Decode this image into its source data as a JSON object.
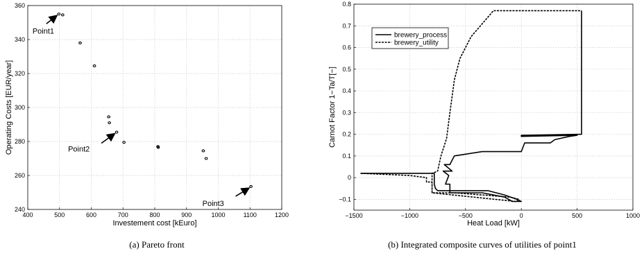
{
  "chart_data": [
    {
      "type": "scatter",
      "title": "",
      "xlabel": "Investement cost [kEuro]",
      "ylabel": "Operating Costs [EUR/year]",
      "xlim": [
        400,
        1200
      ],
      "ylim": [
        240,
        360
      ],
      "xticks": [
        "400",
        "500",
        "600",
        "700",
        "800",
        "900",
        "1000",
        "1100",
        "1200"
      ],
      "yticks": [
        "240",
        "260",
        "280",
        "300",
        "320",
        "340",
        "360"
      ],
      "grid": true,
      "points": [
        {
          "x": 498,
          "y": 355
        },
        {
          "x": 510,
          "y": 354.5
        },
        {
          "x": 565,
          "y": 338
        },
        {
          "x": 610,
          "y": 324.5
        },
        {
          "x": 655,
          "y": 294.5
        },
        {
          "x": 657,
          "y": 291
        },
        {
          "x": 680,
          "y": 285.5
        },
        {
          "x": 703,
          "y": 279.5
        },
        {
          "x": 810,
          "y": 277
        },
        {
          "x": 811,
          "y": 276.5
        },
        {
          "x": 953,
          "y": 274.5
        },
        {
          "x": 962,
          "y": 270
        },
        {
          "x": 1103,
          "y": 253.5
        }
      ],
      "annotations": [
        {
          "text": "Point1",
          "x": 498,
          "y": 355
        },
        {
          "text": "Point2",
          "x": 680,
          "y": 285.5
        },
        {
          "text": "Point3",
          "x": 1103,
          "y": 253.5
        }
      ],
      "caption": "(a) Pareto front"
    },
    {
      "type": "line",
      "title": "",
      "xlabel": "Heat Load [kW]",
      "ylabel": "Carnot Factor 1−Ta/T[−]",
      "xlim": [
        -1500,
        1000
      ],
      "ylim": [
        -0.15,
        0.8
      ],
      "xticks": [
        "−1500",
        "−1000",
        "−500",
        "0",
        "500",
        "1000"
      ],
      "yticks": [
        "−0.1",
        "0",
        "0.1",
        "0.2",
        "0.3",
        "0.4",
        "0.5",
        "0.6",
        "0.7",
        "0.8"
      ],
      "grid": true,
      "legend_position": "top-left",
      "series": [
        {
          "name": "brewery_process",
          "style": "solid",
          "points": [
            [
              -1440,
              0.02
            ],
            [
              -780,
              0.02
            ],
            [
              -780,
              -0.03
            ],
            [
              -770,
              -0.05
            ],
            [
              -750,
              -0.06
            ],
            [
              -300,
              -0.06
            ],
            [
              -150,
              -0.08
            ],
            [
              -40,
              -0.1
            ],
            [
              0,
              -0.11
            ],
            [
              -80,
              -0.11
            ],
            [
              -150,
              -0.09
            ],
            [
              -350,
              -0.07
            ],
            [
              -640,
              -0.07
            ],
            [
              -640,
              -0.03
            ],
            [
              -680,
              -0.03
            ],
            [
              -650,
              0.01
            ],
            [
              -700,
              0.03
            ],
            [
              -620,
              0.03
            ],
            [
              -690,
              0.06
            ],
            [
              -640,
              0.06
            ],
            [
              -600,
              0.1
            ],
            [
              -350,
              0.12
            ],
            [
              0,
              0.12
            ],
            [
              30,
              0.16
            ],
            [
              260,
              0.16
            ],
            [
              300,
              0.175
            ],
            [
              430,
              0.19
            ],
            [
              500,
              0.195
            ],
            [
              0,
              0.19
            ],
            [
              0,
              0.195
            ],
            [
              540,
              0.2
            ],
            [
              540,
              0.77
            ]
          ]
        },
        {
          "name": "brewery_utility",
          "style": "dashed",
          "points": [
            [
              -1440,
              0.02
            ],
            [
              -1000,
              0.01
            ],
            [
              -850,
              0.0
            ],
            [
              -850,
              -0.02
            ],
            [
              -800,
              -0.02
            ],
            [
              -800,
              -0.07
            ],
            [
              -600,
              -0.07
            ],
            [
              -100,
              -0.09
            ],
            [
              -20,
              -0.1
            ],
            [
              -50,
              -0.11
            ],
            [
              -800,
              -0.07
            ],
            [
              -800,
              0.02
            ],
            [
              -750,
              0.03
            ],
            [
              -720,
              0.1
            ],
            [
              -670,
              0.18
            ],
            [
              -640,
              0.3
            ],
            [
              -600,
              0.45
            ],
            [
              -550,
              0.55
            ],
            [
              -450,
              0.65
            ],
            [
              -300,
              0.74
            ],
            [
              -250,
              0.77
            ],
            [
              540,
              0.77
            ]
          ]
        }
      ],
      "caption": "(b) Integrated composite curves of utilities of point1"
    }
  ]
}
